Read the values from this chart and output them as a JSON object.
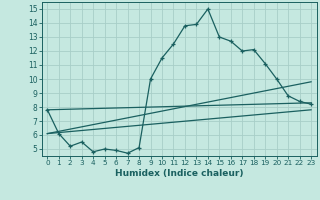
{
  "title": "",
  "xlabel": "Humidex (Indice chaleur)",
  "bg_color": "#c5e8e0",
  "grid_color": "#a8cec8",
  "line_color": "#1a6060",
  "spine_color": "#1a6060",
  "xlim": [
    -0.5,
    23.5
  ],
  "ylim": [
    4.5,
    15.5
  ],
  "xticks": [
    0,
    1,
    2,
    3,
    4,
    5,
    6,
    7,
    8,
    9,
    10,
    11,
    12,
    13,
    14,
    15,
    16,
    17,
    18,
    19,
    20,
    21,
    22,
    23
  ],
  "yticks": [
    5,
    6,
    7,
    8,
    9,
    10,
    11,
    12,
    13,
    14,
    15
  ],
  "line1_x": [
    0,
    1,
    2,
    3,
    4,
    5,
    6,
    7,
    8,
    9,
    10,
    11,
    12,
    13,
    14,
    15,
    16,
    17,
    18,
    19,
    20,
    21,
    22,
    23
  ],
  "line1_y": [
    7.8,
    6.1,
    5.2,
    5.5,
    4.8,
    5.0,
    4.9,
    4.7,
    5.1,
    10.0,
    11.5,
    12.5,
    13.8,
    13.9,
    15.0,
    13.0,
    12.7,
    12.0,
    12.1,
    11.1,
    10.0,
    8.8,
    8.4,
    8.2
  ],
  "line2_x": [
    0,
    23
  ],
  "line2_y": [
    7.8,
    8.3
  ],
  "line3_x": [
    0,
    23
  ],
  "line3_y": [
    6.1,
    9.8
  ],
  "line4_x": [
    0,
    23
  ],
  "line4_y": [
    6.1,
    7.8
  ]
}
